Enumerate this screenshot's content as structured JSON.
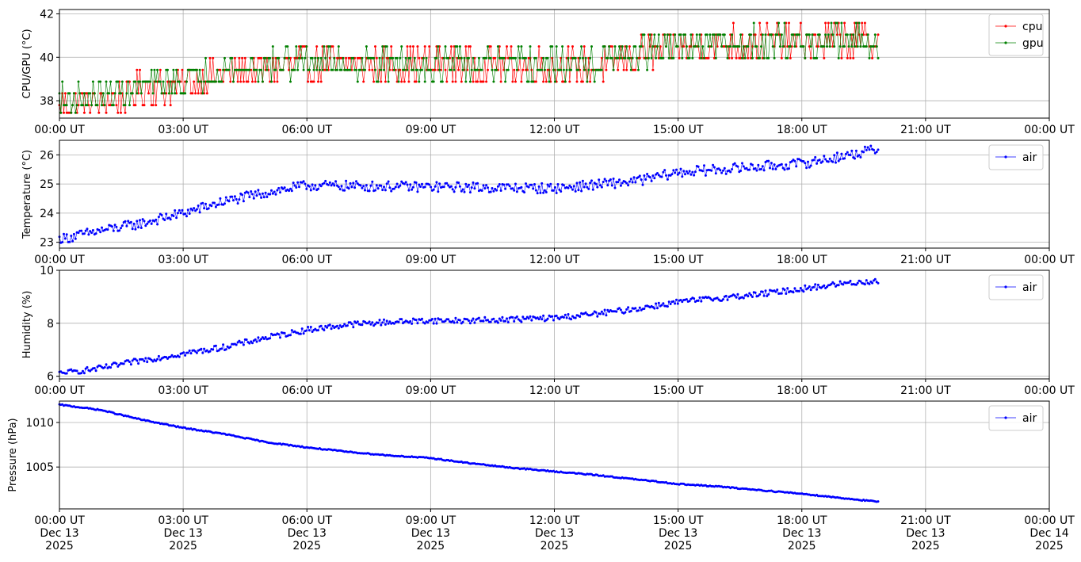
{
  "chart_data": [
    {
      "type": "line",
      "ylabel": "CPU/GPU (°C)",
      "ylim": [
        37.2,
        42.2
      ],
      "yticks": [
        38,
        40,
        42
      ],
      "xlim_hours": [
        0,
        24
      ],
      "xtick_labels": [
        "00:00 UT",
        "03:00 UT",
        "06:00 UT",
        "09:00 UT",
        "12:00 UT",
        "15:00 UT",
        "18:00 UT",
        "21:00 UT",
        "00:00 UT"
      ],
      "grid": true,
      "legend_loc": "upper right",
      "data_end_hour": 19.85,
      "series": [
        {
          "name": "cpu",
          "color": "#ff0000",
          "step": 0.54,
          "marker_size": 1.5,
          "noise": 1.6,
          "anchors": [
            [
              0,
              37.7
            ],
            [
              1.5,
              38.1
            ],
            [
              2,
              38.5
            ],
            [
              3,
              38.8
            ],
            [
              4,
              39.2
            ],
            [
              6,
              39.7
            ],
            [
              12,
              39.6
            ],
            [
              13,
              39.5
            ],
            [
              14,
              40.1
            ],
            [
              15,
              40.5
            ],
            [
              17,
              40.7
            ],
            [
              19.85,
              40.8
            ]
          ]
        },
        {
          "name": "gpu",
          "color": "#008000",
          "step": 0.54,
          "marker_size": 1.5,
          "noise": 1.4,
          "anchors": [
            [
              0,
              38.0
            ],
            [
              1.5,
              38.3
            ],
            [
              2,
              38.7
            ],
            [
              3,
              38.9
            ],
            [
              4,
              39.4
            ],
            [
              6,
              39.8
            ],
            [
              12,
              39.6
            ],
            [
              13,
              39.7
            ],
            [
              14,
              40.2
            ],
            [
              15,
              40.5
            ],
            [
              17,
              40.7
            ],
            [
              19.85,
              40.8
            ]
          ]
        }
      ]
    },
    {
      "type": "line",
      "ylabel": "Temperature (°C)",
      "ylim": [
        22.8,
        26.5
      ],
      "yticks": [
        23,
        24,
        25,
        26
      ],
      "xlim_hours": [
        0,
        24
      ],
      "xtick_labels": [
        "00:00 UT",
        "03:00 UT",
        "06:00 UT",
        "09:00 UT",
        "12:00 UT",
        "15:00 UT",
        "18:00 UT",
        "21:00 UT",
        "00:00 UT"
      ],
      "grid": true,
      "legend_loc": "upper right",
      "data_end_hour": 19.85,
      "series": [
        {
          "name": "air",
          "color": "#0000ff",
          "step": 0,
          "marker_size": 1.5,
          "noise": 0.35,
          "anchors": [
            [
              0,
              23.1
            ],
            [
              1,
              23.4
            ],
            [
              2,
              23.65
            ],
            [
              3,
              24.0
            ],
            [
              4,
              24.4
            ],
            [
              5,
              24.7
            ],
            [
              6,
              24.95
            ],
            [
              9,
              24.9
            ],
            [
              12,
              24.85
            ],
            [
              14,
              25.1
            ],
            [
              15,
              25.4
            ],
            [
              16,
              25.5
            ],
            [
              17,
              25.6
            ],
            [
              18,
              25.7
            ],
            [
              19,
              25.95
            ],
            [
              19.85,
              26.2
            ]
          ]
        }
      ]
    },
    {
      "type": "line",
      "ylabel": "Humidity (%)",
      "ylim": [
        5.9,
        10.0
      ],
      "yticks": [
        6,
        8,
        10
      ],
      "xlim_hours": [
        0,
        24
      ],
      "xtick_labels": [
        "00:00 UT",
        "03:00 UT",
        "06:00 UT",
        "09:00 UT",
        "12:00 UT",
        "15:00 UT",
        "18:00 UT",
        "21:00 UT",
        "00:00 UT"
      ],
      "grid": true,
      "legend_loc": "upper right",
      "data_end_hour": 19.85,
      "series": [
        {
          "name": "air",
          "color": "#0000ff",
          "step": 0,
          "marker_size": 1.5,
          "noise": 0.22,
          "anchors": [
            [
              0,
              6.1
            ],
            [
              1,
              6.3
            ],
            [
              2,
              6.6
            ],
            [
              3,
              6.85
            ],
            [
              4,
              7.1
            ],
            [
              5,
              7.45
            ],
            [
              6,
              7.75
            ],
            [
              7,
              7.95
            ],
            [
              8,
              8.05
            ],
            [
              9,
              8.1
            ],
            [
              10,
              8.1
            ],
            [
              11,
              8.15
            ],
            [
              12,
              8.2
            ],
            [
              13,
              8.35
            ],
            [
              14,
              8.55
            ],
            [
              15,
              8.8
            ],
            [
              16,
              8.95
            ],
            [
              17,
              9.1
            ],
            [
              18,
              9.3
            ],
            [
              19,
              9.5
            ],
            [
              19.85,
              9.6
            ]
          ]
        }
      ]
    },
    {
      "type": "line",
      "ylabel": "Pressure (hPa)",
      "ylim": [
        1000.3,
        1012.4
      ],
      "yticks": [
        1005,
        1010
      ],
      "xlim_hours": [
        0,
        24
      ],
      "xtick_labels": [
        "00:00 UT\nDec 13\n2025",
        "03:00 UT\nDec 13\n2025",
        "06:00 UT\nDec 13\n2025",
        "09:00 UT\nDec 13\n2025",
        "12:00 UT\nDec 13\n2025",
        "15:00 UT\nDec 13\n2025",
        "18:00 UT\nDec 13\n2025",
        "21:00 UT\nDec 13\n2025",
        "00:00 UT\nDec 14\n2025"
      ],
      "grid": true,
      "legend_loc": "upper right",
      "data_end_hour": 19.85,
      "series": [
        {
          "name": "air",
          "color": "#0000ff",
          "step": 0,
          "marker_size": 1.5,
          "noise": 0.12,
          "anchors": [
            [
              0,
              1012.0
            ],
            [
              1,
              1011.4
            ],
            [
              2,
              1010.3
            ],
            [
              3,
              1009.4
            ],
            [
              4,
              1008.7
            ],
            [
              5,
              1007.8
            ],
            [
              6,
              1007.2
            ],
            [
              7,
              1006.7
            ],
            [
              8,
              1006.3
            ],
            [
              9,
              1006.0
            ],
            [
              10,
              1005.4
            ],
            [
              11,
              1004.9
            ],
            [
              12,
              1004.5
            ],
            [
              13,
              1004.1
            ],
            [
              14,
              1003.6
            ],
            [
              15,
              1003.1
            ],
            [
              16,
              1002.8
            ],
            [
              17,
              1002.4
            ],
            [
              18,
              1002.0
            ],
            [
              19,
              1001.5
            ],
            [
              19.85,
              1001.1
            ]
          ]
        }
      ]
    }
  ]
}
